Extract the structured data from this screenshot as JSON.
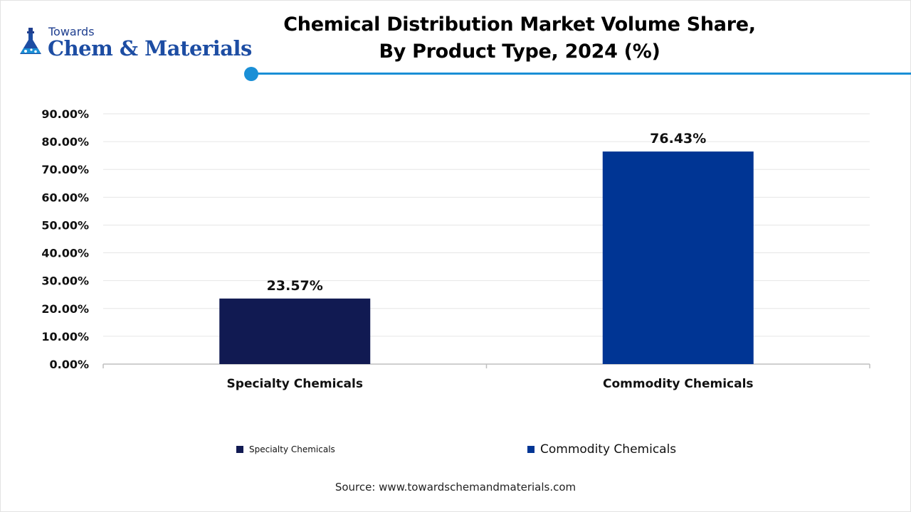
{
  "brand": {
    "towards": "Towards",
    "name": "Chem & Materials",
    "accent_color": "#1a8fd6",
    "logo_color": "#1d4da3"
  },
  "title_line1": "Chemical Distribution Market Volume Share,",
  "title_line2": "By Product Type, 2024 (%)",
  "source": "Source: www.towardschemandmaterials.com",
  "chart_data": {
    "type": "bar",
    "categories": [
      "Specialty Chemicals",
      "Commodity Chemicals"
    ],
    "values": [
      23.57,
      76.43
    ],
    "value_labels": [
      "23.57%",
      "76.43%"
    ],
    "colors": [
      "#111a52",
      "#003594"
    ],
    "ylim": [
      0,
      90
    ],
    "yticks": [
      0,
      10,
      20,
      30,
      40,
      50,
      60,
      70,
      80,
      90
    ],
    "ytick_labels": [
      "0.00%",
      "10.00%",
      "20.00%",
      "30.00%",
      "40.00%",
      "50.00%",
      "60.00%",
      "70.00%",
      "80.00%",
      "90.00%"
    ],
    "grid": true,
    "legend": {
      "placement": "bottom",
      "entries": [
        "Specialty Chemicals",
        "Commodity Chemicals"
      ]
    }
  }
}
